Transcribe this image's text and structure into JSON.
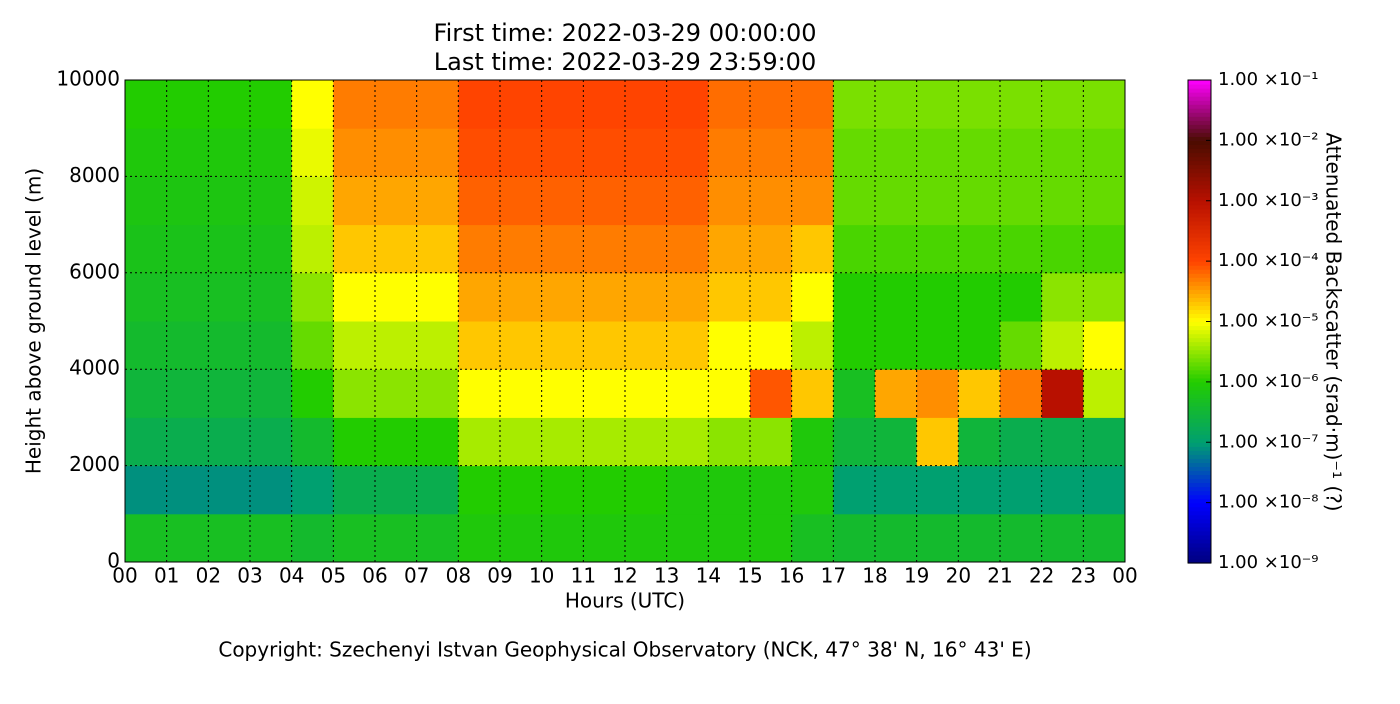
{
  "chart_data": {
    "type": "heatmap",
    "title": "First time: 2022-03-29 00:00:00",
    "subtitle": "Last time: 2022-03-29 23:59:00",
    "x_label": "Hours (UTC)",
    "y_label": "Height above ground level (m)",
    "colorbar_label": "Attenuated Backscatter (srad·m)⁻¹ (?)",
    "footer": "Copyright: Szechenyi Istvan Geophysical Observatory (NCK, 47° 38' N, 16° 43' E)",
    "xlim": [
      0,
      24
    ],
    "ylim": [
      0,
      10000
    ],
    "xticks": [
      {
        "value": 0,
        "label": "00"
      },
      {
        "value": 1,
        "label": "01"
      },
      {
        "value": 2,
        "label": "02"
      },
      {
        "value": 3,
        "label": "03"
      },
      {
        "value": 4,
        "label": "04"
      },
      {
        "value": 5,
        "label": "05"
      },
      {
        "value": 6,
        "label": "06"
      },
      {
        "value": 7,
        "label": "07"
      },
      {
        "value": 8,
        "label": "08"
      },
      {
        "value": 9,
        "label": "09"
      },
      {
        "value": 10,
        "label": "10"
      },
      {
        "value": 11,
        "label": "11"
      },
      {
        "value": 12,
        "label": "12"
      },
      {
        "value": 13,
        "label": "13"
      },
      {
        "value": 14,
        "label": "14"
      },
      {
        "value": 15,
        "label": "15"
      },
      {
        "value": 16,
        "label": "16"
      },
      {
        "value": 17,
        "label": "17"
      },
      {
        "value": 18,
        "label": "18"
      },
      {
        "value": 19,
        "label": "19"
      },
      {
        "value": 20,
        "label": "20"
      },
      {
        "value": 21,
        "label": "21"
      },
      {
        "value": 22,
        "label": "22"
      },
      {
        "value": 23,
        "label": "23"
      },
      {
        "value": 24,
        "label": "00"
      }
    ],
    "yticks": [
      0,
      2000,
      4000,
      6000,
      8000,
      10000
    ],
    "grid": true,
    "xbins": [
      0,
      1,
      2,
      3,
      4,
      5,
      6,
      7,
      8,
      9,
      10,
      11,
      12,
      13,
      14,
      15,
      16,
      17,
      18,
      19,
      20,
      21,
      22,
      23,
      24
    ],
    "ybins": [
      0,
      1000,
      2000,
      3000,
      4000,
      5000,
      6000,
      7000,
      8000,
      9000,
      10000
    ],
    "zscale": "log",
    "zlim": [
      1e-09,
      0.1
    ],
    "zticks": [
      {
        "value": 1e-09,
        "label": "1.00 ×10⁻⁹"
      },
      {
        "value": 1e-08,
        "label": "1.00 ×10⁻⁸"
      },
      {
        "value": 1e-07,
        "label": "1.00 ×10⁻⁷"
      },
      {
        "value": 1e-06,
        "label": "1.00 ×10⁻⁶"
      },
      {
        "value": 1e-05,
        "label": "1.00 ×10⁻⁵"
      },
      {
        "value": 0.0001,
        "label": "1.00 ×10⁻⁴"
      },
      {
        "value": 0.001,
        "label": "1.00 ×10⁻³"
      },
      {
        "value": 0.01,
        "label": "1.00 ×10⁻²"
      },
      {
        "value": 0.1,
        "label": "1.00 ×10⁻¹"
      }
    ],
    "colormap": [
      "#00007f",
      "#0000ff",
      "#00a070",
      "#22cc00",
      "#ffff00",
      "#ff4400",
      "#b81000",
      "#4a0c00",
      "#ff00ff"
    ],
    "z": [
      [
        5e-07,
        5e-07,
        5e-07,
        5e-07,
        4e-07,
        5e-07,
        5e-07,
        5e-07,
        8e-07,
        8e-07,
        8e-07,
        8e-07,
        8e-07,
        8e-07,
        8e-07,
        8e-07,
        5e-07,
        4e-07,
        4e-07,
        4e-07,
        4e-07,
        4e-07,
        4e-07,
        4e-07
      ],
      [
        8e-08,
        8e-08,
        8e-08,
        8e-08,
        1e-07,
        2e-07,
        2e-07,
        2e-07,
        1e-06,
        1e-06,
        1e-06,
        1e-06,
        1e-06,
        8e-07,
        8e-07,
        8e-07,
        8e-07,
        1e-07,
        1e-07,
        1e-07,
        1e-07,
        1e-07,
        1e-07,
        1e-07
      ],
      [
        2e-07,
        2e-07,
        2e-07,
        2e-07,
        4e-07,
        1e-06,
        1e-06,
        1e-06,
        4e-06,
        4e-06,
        4e-06,
        4e-06,
        4e-06,
        4e-06,
        3e-06,
        3e-06,
        8e-07,
        3e-07,
        3e-07,
        2e-05,
        3e-07,
        2e-07,
        2e-07,
        2e-07
      ],
      [
        3e-07,
        3e-07,
        3e-07,
        3e-07,
        1e-06,
        3e-06,
        3e-06,
        3e-06,
        1e-05,
        1e-05,
        1e-05,
        1e-05,
        1e-05,
        1e-05,
        1e-05,
        8e-05,
        2e-05,
        5e-07,
        3e-05,
        4e-05,
        2e-05,
        5e-05,
        0.001,
        5e-06
      ],
      [
        4e-07,
        4e-07,
        4e-07,
        4e-07,
        2e-06,
        5e-06,
        5e-06,
        5e-06,
        2e-05,
        2e-05,
        2e-05,
        2e-05,
        2e-05,
        2e-05,
        1e-05,
        1e-05,
        5e-06,
        1e-06,
        1e-06,
        1e-06,
        1e-06,
        2e-06,
        5e-06,
        1e-05
      ],
      [
        5e-07,
        5e-07,
        5e-07,
        5e-07,
        3e-06,
        1e-05,
        1e-05,
        1e-05,
        3e-05,
        3e-05,
        3e-05,
        3e-05,
        3e-05,
        3e-05,
        2e-05,
        2e-05,
        1e-05,
        1e-06,
        1e-06,
        1e-06,
        1e-06,
        1e-06,
        3e-06,
        3e-06
      ],
      [
        6e-07,
        6e-07,
        6e-07,
        6e-07,
        5e-06,
        2e-05,
        2e-05,
        2e-05,
        5e-05,
        5e-05,
        5e-05,
        5e-05,
        5e-05,
        5e-05,
        3e-05,
        3e-05,
        2e-05,
        1.5e-06,
        1.5e-06,
        1.5e-06,
        1.5e-06,
        1.5e-06,
        1.5e-06,
        1.5e-06
      ],
      [
        7e-07,
        7e-07,
        7e-07,
        7e-07,
        6e-06,
        3e-05,
        3e-05,
        3e-05,
        7e-05,
        7e-05,
        7e-05,
        7e-05,
        7e-05,
        7e-05,
        4e-05,
        4e-05,
        4e-05,
        2e-06,
        2e-06,
        2e-06,
        2e-06,
        2e-06,
        2e-06,
        2e-06
      ],
      [
        8e-07,
        8e-07,
        8e-07,
        8e-07,
        8e-06,
        4e-05,
        4e-05,
        4e-05,
        9e-05,
        9e-05,
        9e-05,
        9e-05,
        9e-05,
        9e-05,
        5e-05,
        5e-05,
        5e-05,
        2e-06,
        2e-06,
        2e-06,
        2e-06,
        2e-06,
        2e-06,
        2e-06
      ],
      [
        1e-06,
        1e-06,
        1e-06,
        1e-06,
        1e-05,
        5e-05,
        5e-05,
        5e-05,
        0.0001,
        0.0001,
        0.0001,
        0.0001,
        0.0001,
        0.0001,
        6e-05,
        6e-05,
        6e-05,
        2.5e-06,
        2.5e-06,
        2.5e-06,
        2.5e-06,
        2.5e-06,
        2.5e-06,
        2.5e-06
      ]
    ]
  }
}
